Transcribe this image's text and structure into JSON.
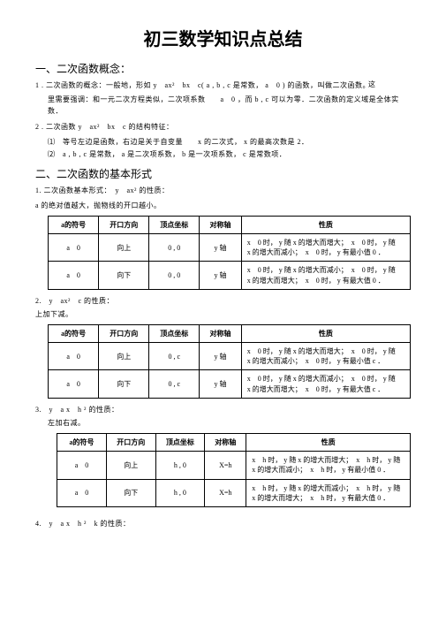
{
  "title": "初三数学知识点总结",
  "sec1_heading": "一、二次函数概念：",
  "p1a": "1 . 二次函数的概念：一般地，形如 y　ax²　bx　c( a , b , c 是常数， a　0 ) 的函数，叫做二次函数。",
  "p1a_right": "这",
  "p1b": "里需要强调：和一元二次方程类似，二次项系数　　a　0 ，而 b , c 可以为零．二次函数的定义域是全体实",
  "p1c": "数．",
  "p2a": "2 . 二次函数 y　ax²　bx　c 的结构特征：",
  "p2b": "⑴　等号左边是函数，右边是关于自变量　　x 的二次式， x 的最高次数是 2．",
  "p2c": "⑵　a , b , c 是常数， a 是二次项系数， b 是一次项系数， c 是常数项．",
  "sec2_heading": "二、二次函数的基本形式",
  "p3": "1. 二次函数基本形式：　y　ax² 的性质：",
  "p4": "a 的绝对值越大，抛物线的开口越小。",
  "t_headers": [
    "a的符号",
    "开口方向",
    "顶点坐标",
    "对称轴",
    "性质"
  ],
  "t1_col_w": [
    50,
    50,
    50,
    40,
    190
  ],
  "t1_rows": [
    {
      "c": [
        "a　0",
        "向上",
        "0 , 0",
        "y 轴"
      ],
      "prop": "x　0 时， y 随 x 的增大而增大；　x　0 时， y 随\nx 的增大而减小；　x　0 时， y 有最小值 0 ．"
    },
    {
      "c": [
        "a　0",
        "向下",
        "0 , 0",
        "y 轴"
      ],
      "prop": "x　0 时， y 随 x 的增大而减小；　x　0 时， y 随\nx 的增大而增大；　x　0 时， y 有最大值 0 ．"
    }
  ],
  "p5": "2.　y　ax²　c 的性质：",
  "p5b": "上加下减。",
  "t2_rows": [
    {
      "c": [
        "a　0",
        "向上",
        "0 , c",
        "y 轴"
      ],
      "prop": "x　0 时， y 随 x 的增大而增大；　x　0 时， y 随\nx 的增大而减小；　x　0 时， y 有最小值 c ．"
    },
    {
      "c": [
        "a　0",
        "向下",
        "0 , c",
        "y 轴"
      ],
      "prop": "x　0 时， y 随 x 的增大而减小；　x　0 时， y 随\nx 的增大而增大；　x　0 时， y 有最大值 c ．"
    }
  ],
  "p6": "3.　y　a x　h ² 的性质：",
  "p6b": "左加右减。",
  "t3_rows": [
    {
      "c": [
        "a　0",
        "向上",
        "h , 0",
        "X=h"
      ],
      "prop": "x　h 时， y 随 x 的增大而增大；　x　h 时， y 随\nx 的增大而减小；　x　h 时， y 有最小值 0 ．"
    },
    {
      "c": [
        "a　0",
        "向下",
        "h , 0",
        "X=h"
      ],
      "prop": "x　h 时， y 随 x 的增大而减小；　x　h 时， y 随\nx 的增大而增大；　x　h 时， y 有最大值 0 ．"
    }
  ],
  "p7": "4.　y　a x　h ²　k 的性质："
}
